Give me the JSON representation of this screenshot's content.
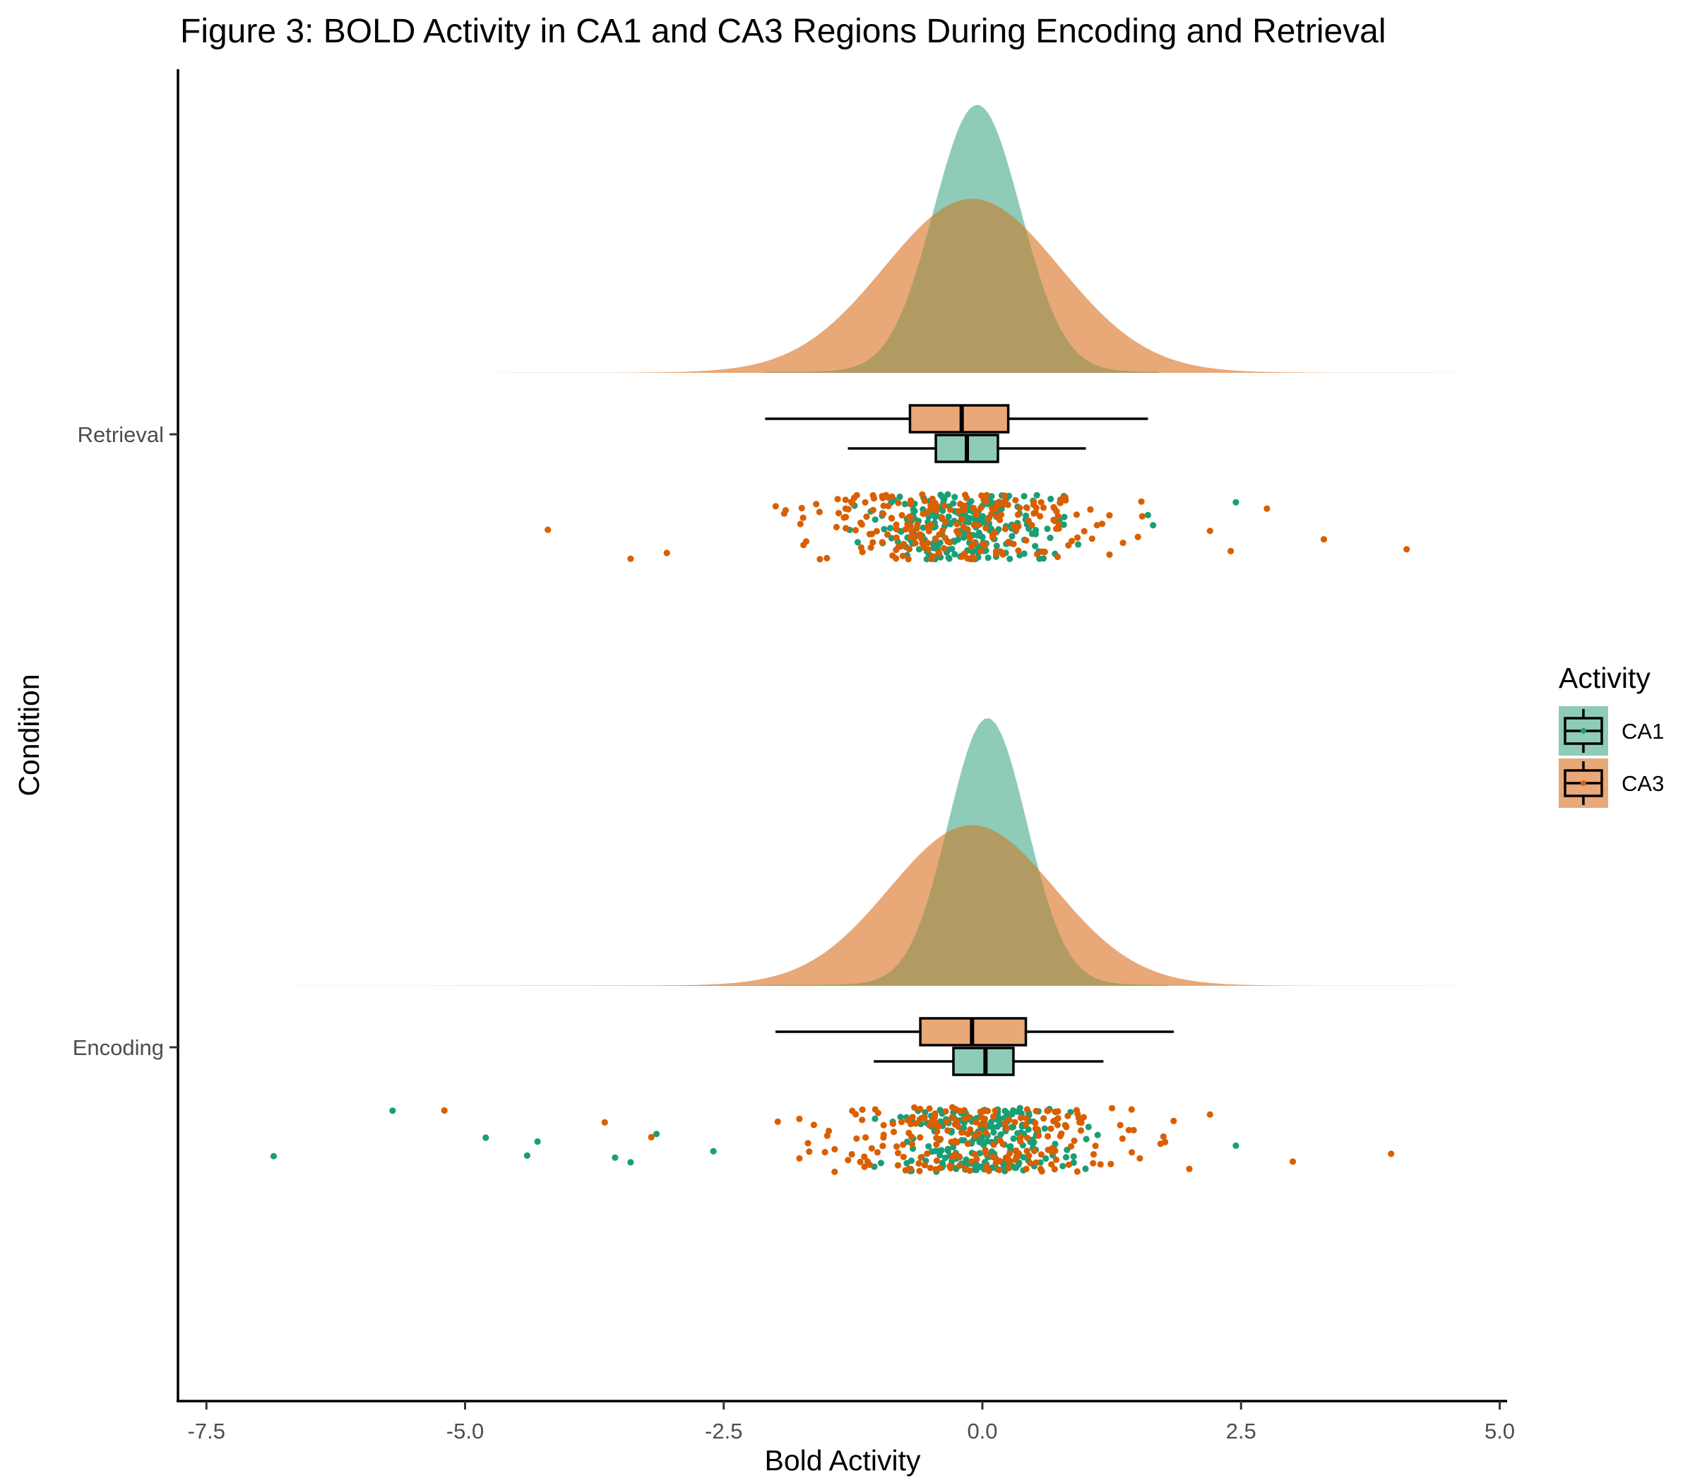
{
  "chart_data": {
    "type": "raincloud",
    "title": "Figure 3: BOLD Activity in CA1 and CA3 Regions During Encoding and Retrieval",
    "xlabel": "Bold Activity",
    "ylabel": "Condition",
    "xlim": [
      -7.6,
      5.15
    ],
    "xticks": [
      -7.5,
      -5.0,
      -2.5,
      0.0,
      2.5,
      5.0
    ],
    "xtick_labels": [
      "-7.5",
      "-5.0",
      "-2.5",
      "0.0",
      "2.5",
      "5.0"
    ],
    "categories": [
      "Retrieval",
      "Encoding"
    ],
    "legend": {
      "title": "Activity",
      "position": "right",
      "entries": [
        "CA1",
        "CA3"
      ]
    },
    "colors": {
      "CA1": "#1b9e77",
      "CA3": "#d95f02",
      "CA1_fill": "#8ecbb8",
      "CA3_fill": "#e8a878",
      "overlap": "#b29b62"
    },
    "grid": false,
    "series": [
      {
        "name": "CA1",
        "boxplots": {
          "Retrieval": {
            "whisker_low": -1.3,
            "q1": -0.45,
            "median": -0.15,
            "q3": 0.15,
            "whisker_high": 1.0
          },
          "Encoding": {
            "whisker_low": -1.05,
            "q1": -0.28,
            "median": 0.03,
            "q3": 0.3,
            "whisker_high": 1.17
          }
        },
        "density": {
          "Retrieval": {
            "range": [
              -2.1,
              1.7
            ],
            "peak": -0.05,
            "sd": 0.42,
            "peak_height": 1.0
          },
          "Encoding": {
            "range": [
              -7.1,
              1.8
            ],
            "peak": 0.05,
            "sd": 0.38,
            "peak_height": 1.0
          }
        },
        "outliers": {
          "Retrieval": [
            2.45,
            1.65,
            1.6
          ],
          "Encoding": [
            -6.85,
            -5.7,
            -4.8,
            -4.4,
            -4.3,
            -3.55,
            -3.4,
            -3.15,
            -2.6,
            2.45
          ]
        }
      },
      {
        "name": "CA3",
        "boxplots": {
          "Retrieval": {
            "whisker_low": -2.1,
            "q1": -0.7,
            "median": -0.2,
            "q3": 0.25,
            "whisker_high": 1.6
          },
          "Encoding": {
            "whisker_low": -2.0,
            "q1": -0.6,
            "median": -0.1,
            "q3": 0.42,
            "whisker_high": 1.85
          }
        },
        "density": {
          "Retrieval": {
            "range": [
              -4.7,
              4.6
            ],
            "peak": -0.1,
            "sd": 0.85,
            "peak_height": 0.65
          },
          "Encoding": {
            "range": [
              -5.3,
              4.6
            ],
            "peak": -0.1,
            "sd": 0.8,
            "peak_height": 0.6
          }
        },
        "outliers": {
          "Retrieval": [
            -4.2,
            -3.4,
            -3.05,
            2.2,
            2.4,
            2.75,
            3.3,
            4.1
          ],
          "Encoding": [
            -5.2,
            -3.65,
            -3.2,
            2.0,
            2.2,
            3.0,
            3.95
          ]
        }
      }
    ]
  }
}
